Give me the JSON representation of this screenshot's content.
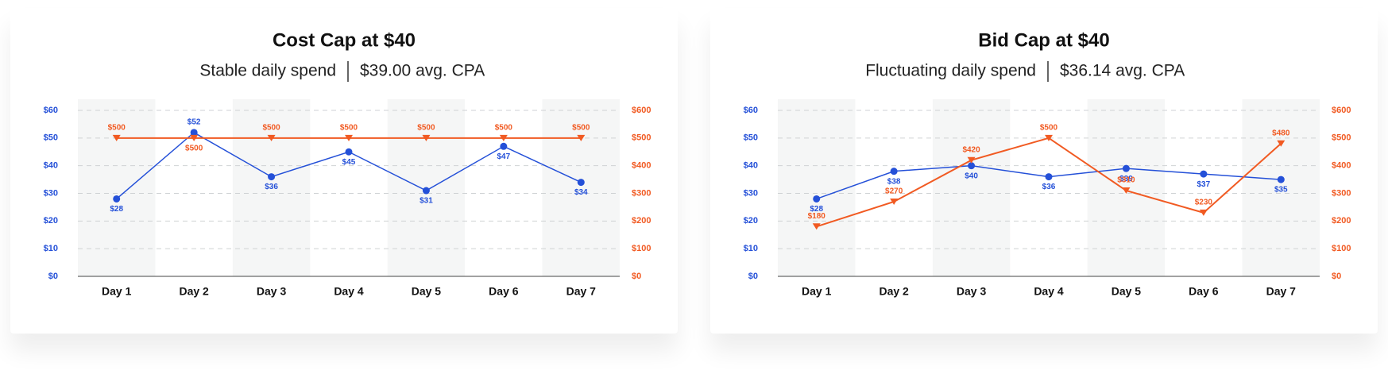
{
  "chart_data": [
    {
      "type": "line",
      "title": "Cost Cap at $40",
      "subtitle": [
        "Stable daily spend",
        "$39.00 avg. CPA"
      ],
      "categories": [
        "Day 1",
        "Day 2",
        "Day 3",
        "Day 4",
        "Day 5",
        "Day 6",
        "Day 7"
      ],
      "ylim": [
        0,
        60
      ],
      "yticks": [
        {
          "value": 0,
          "label": "$0"
        },
        {
          "value": 10,
          "label": "$10"
        },
        {
          "value": 20,
          "label": "$20"
        },
        {
          "value": 30,
          "label": "$30"
        },
        {
          "value": 40,
          "label": "$40"
        },
        {
          "value": 50,
          "label": "$50"
        },
        {
          "value": 60,
          "label": "$60"
        }
      ],
      "y2lim": [
        0,
        600
      ],
      "y2ticks": [
        {
          "value": 0,
          "label": "$0"
        },
        {
          "value": 100,
          "label": "$100"
        },
        {
          "value": 200,
          "label": "$200"
        },
        {
          "value": 300,
          "label": "$300"
        },
        {
          "value": 400,
          "label": "$400"
        },
        {
          "value": 500,
          "label": "$500"
        },
        {
          "value": 600,
          "label": "$600"
        }
      ],
      "grid": true,
      "series": [
        {
          "color": "#2450d8",
          "values": [
            28,
            52,
            36,
            45,
            31,
            47,
            34
          ],
          "value_labels": [
            "$28",
            "$52",
            "$36",
            "$45",
            "$31",
            "$47",
            "$34"
          ]
        },
        {
          "color": "#f15a22",
          "axis": "y2",
          "values": [
            500,
            500,
            500,
            500,
            500,
            500,
            500
          ],
          "value_labels": [
            "$500",
            "$500",
            "$500",
            "$500",
            "$500",
            "$500",
            "$500"
          ]
        }
      ]
    },
    {
      "type": "line",
      "title": "Bid Cap at $40",
      "subtitle": [
        "Fluctuating daily spend",
        "$36.14 avg. CPA"
      ],
      "categories": [
        "Day 1",
        "Day 2",
        "Day 3",
        "Day 4",
        "Day 5",
        "Day 6",
        "Day 7"
      ],
      "ylim": [
        0,
        60
      ],
      "yticks": [
        {
          "value": 0,
          "label": "$0"
        },
        {
          "value": 10,
          "label": "$10"
        },
        {
          "value": 20,
          "label": "$20"
        },
        {
          "value": 30,
          "label": "$30"
        },
        {
          "value": 40,
          "label": "$40"
        },
        {
          "value": 50,
          "label": "$50"
        },
        {
          "value": 60,
          "label": "$60"
        }
      ],
      "y2lim": [
        0,
        600
      ],
      "y2ticks": [
        {
          "value": 0,
          "label": "$0"
        },
        {
          "value": 100,
          "label": "$100"
        },
        {
          "value": 200,
          "label": "$200"
        },
        {
          "value": 300,
          "label": "$300"
        },
        {
          "value": 400,
          "label": "$400"
        },
        {
          "value": 500,
          "label": "$500"
        },
        {
          "value": 600,
          "label": "$600"
        }
      ],
      "grid": true,
      "series": [
        {
          "color": "#2450d8",
          "values": [
            28,
            38,
            40,
            36,
            39,
            37,
            35
          ],
          "value_labels": [
            "$28",
            "$38",
            "$40",
            "$36",
            "$39",
            "$37",
            "$35"
          ]
        },
        {
          "color": "#f15a22",
          "axis": "y2",
          "values": [
            180,
            270,
            420,
            500,
            310,
            230,
            480
          ],
          "value_labels": [
            "$180",
            "$270",
            "$420",
            "$500",
            "$310",
            "$230",
            "$480"
          ]
        }
      ]
    }
  ]
}
